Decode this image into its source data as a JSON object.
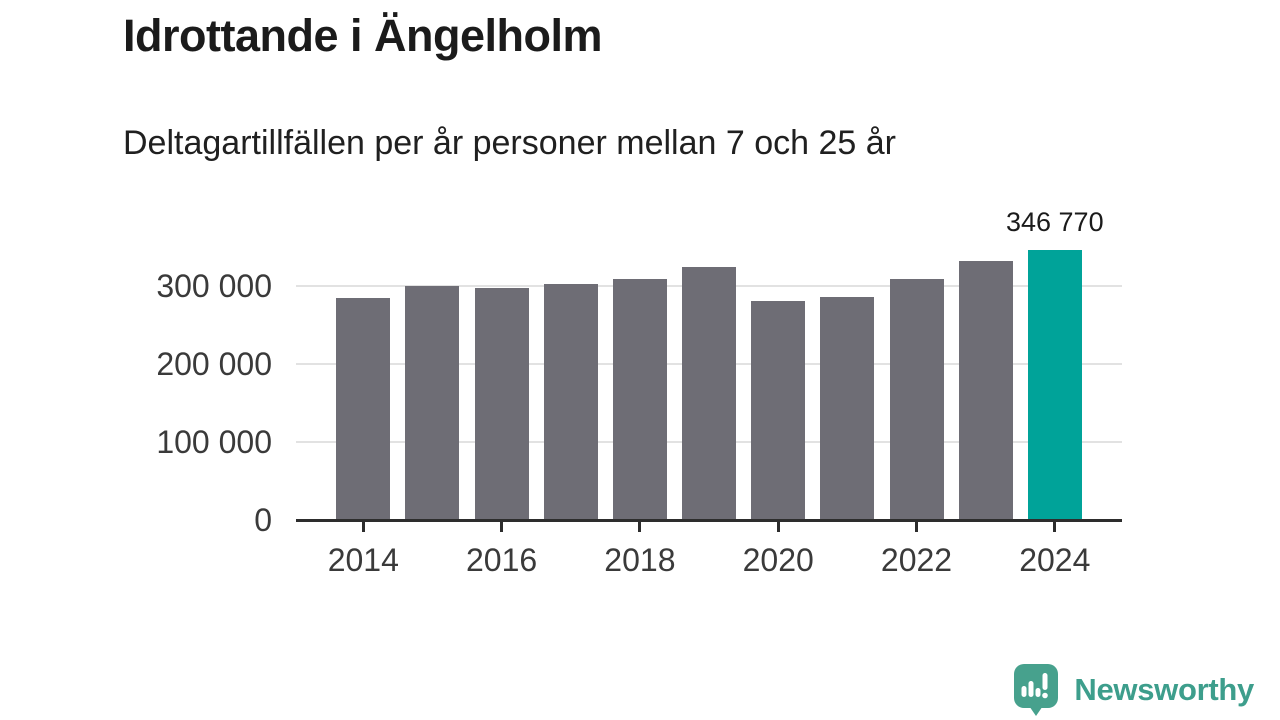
{
  "header": {
    "title": "Idrottande i Ängelholm",
    "subtitle": "Deltagartillfällen per år personer mellan 7 och 25 år"
  },
  "chart_data": {
    "type": "bar",
    "title": "Idrottande i Ängelholm",
    "subtitle": "Deltagartillfällen per år personer mellan 7 och 25 år",
    "categories": [
      "2014",
      "2015",
      "2016",
      "2017",
      "2018",
      "2019",
      "2020",
      "2021",
      "2022",
      "2023",
      "2024"
    ],
    "values": [
      285000,
      300000,
      298000,
      303000,
      309000,
      324000,
      281000,
      286000,
      309000,
      332000,
      346770
    ],
    "highlight_index": 10,
    "annotation": {
      "text": "346 770",
      "bar_index": 10
    },
    "y_axis": {
      "ticks": [
        {
          "value": 0,
          "label": "0"
        },
        {
          "value": 100000,
          "label": "100 000"
        },
        {
          "value": 200000,
          "label": "200 000"
        },
        {
          "value": 300000,
          "label": "300 000"
        }
      ]
    },
    "x_axis": {
      "tick_labels": [
        "2014",
        "2016",
        "2018",
        "2020",
        "2022",
        "2024"
      ]
    },
    "ylim": [
      0,
      360000
    ],
    "grid": "horizontal",
    "legend": null,
    "colors": {
      "bar": "#6e6d75",
      "highlight": "#00a399",
      "gridline": "#e2e2e2",
      "axis": "#2d2d2d",
      "tick_label": "#3a3a3a",
      "text": "#1b1b1b"
    }
  },
  "footer": {
    "brand": "Newsworthy",
    "logo_icon": "newsworthy-speech-bubble-chart-icon",
    "brand_color": "#3d9e8c",
    "bubble_color": "#47a18d"
  }
}
